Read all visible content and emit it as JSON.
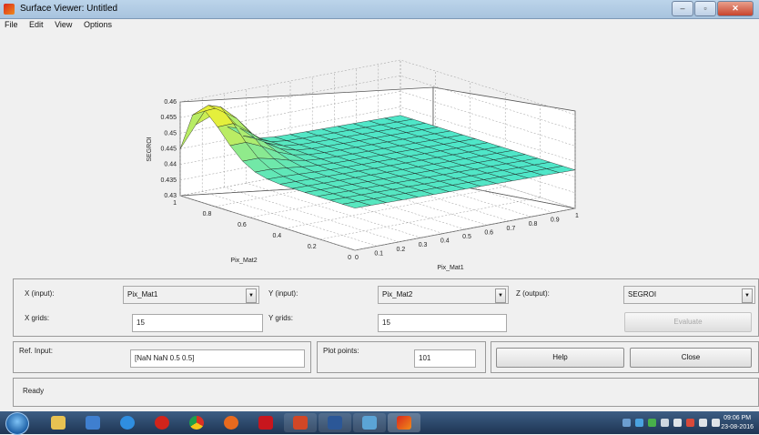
{
  "window": {
    "title": "Surface Viewer: Untitled"
  },
  "menu": [
    "File",
    "Edit",
    "View",
    "Options"
  ],
  "plot": {
    "zlabel": "SEGROI",
    "xlabel": "Pix_Mat1",
    "ylabel": "Pix_Mat2",
    "z_ticks": [
      "0.46",
      "0.455",
      "0.45",
      "0.445",
      "0.44",
      "0.435",
      "0.43"
    ],
    "x_ticks": [
      "0",
      "0.1",
      "0.2",
      "0.3",
      "0.4",
      "0.5",
      "0.6",
      "0.7",
      "0.8",
      "0.9",
      "1"
    ],
    "y_ticks": [
      "1",
      "0.8",
      "0.6",
      "0.4",
      "0.2",
      "0"
    ],
    "colors": {
      "surface_flat": "#4fe6c8",
      "surface_peak": "#e6ef3a",
      "mesh": "#1a1a1a"
    }
  },
  "controls": {
    "x_input_label": "X (input):",
    "x_input_value": "Pix_Mat1",
    "y_input_label": "Y (input):",
    "y_input_value": "Pix_Mat2",
    "z_output_label": "Z (output):",
    "z_output_value": "SEGROI",
    "x_grids_label": "X grids:",
    "x_grids_value": "15",
    "y_grids_label": "Y grids:",
    "y_grids_value": "15",
    "evaluate_label": "Evaluate",
    "ref_input_label": "Ref. Input:",
    "ref_input_value": "[NaN NaN 0.5 0.5]",
    "plot_points_label": "Plot points:",
    "plot_points_value": "101",
    "help_label": "Help",
    "close_label": "Close",
    "status": "Ready"
  },
  "taskbar": {
    "time": "09:06 PM",
    "date": "23-08-2016"
  }
}
